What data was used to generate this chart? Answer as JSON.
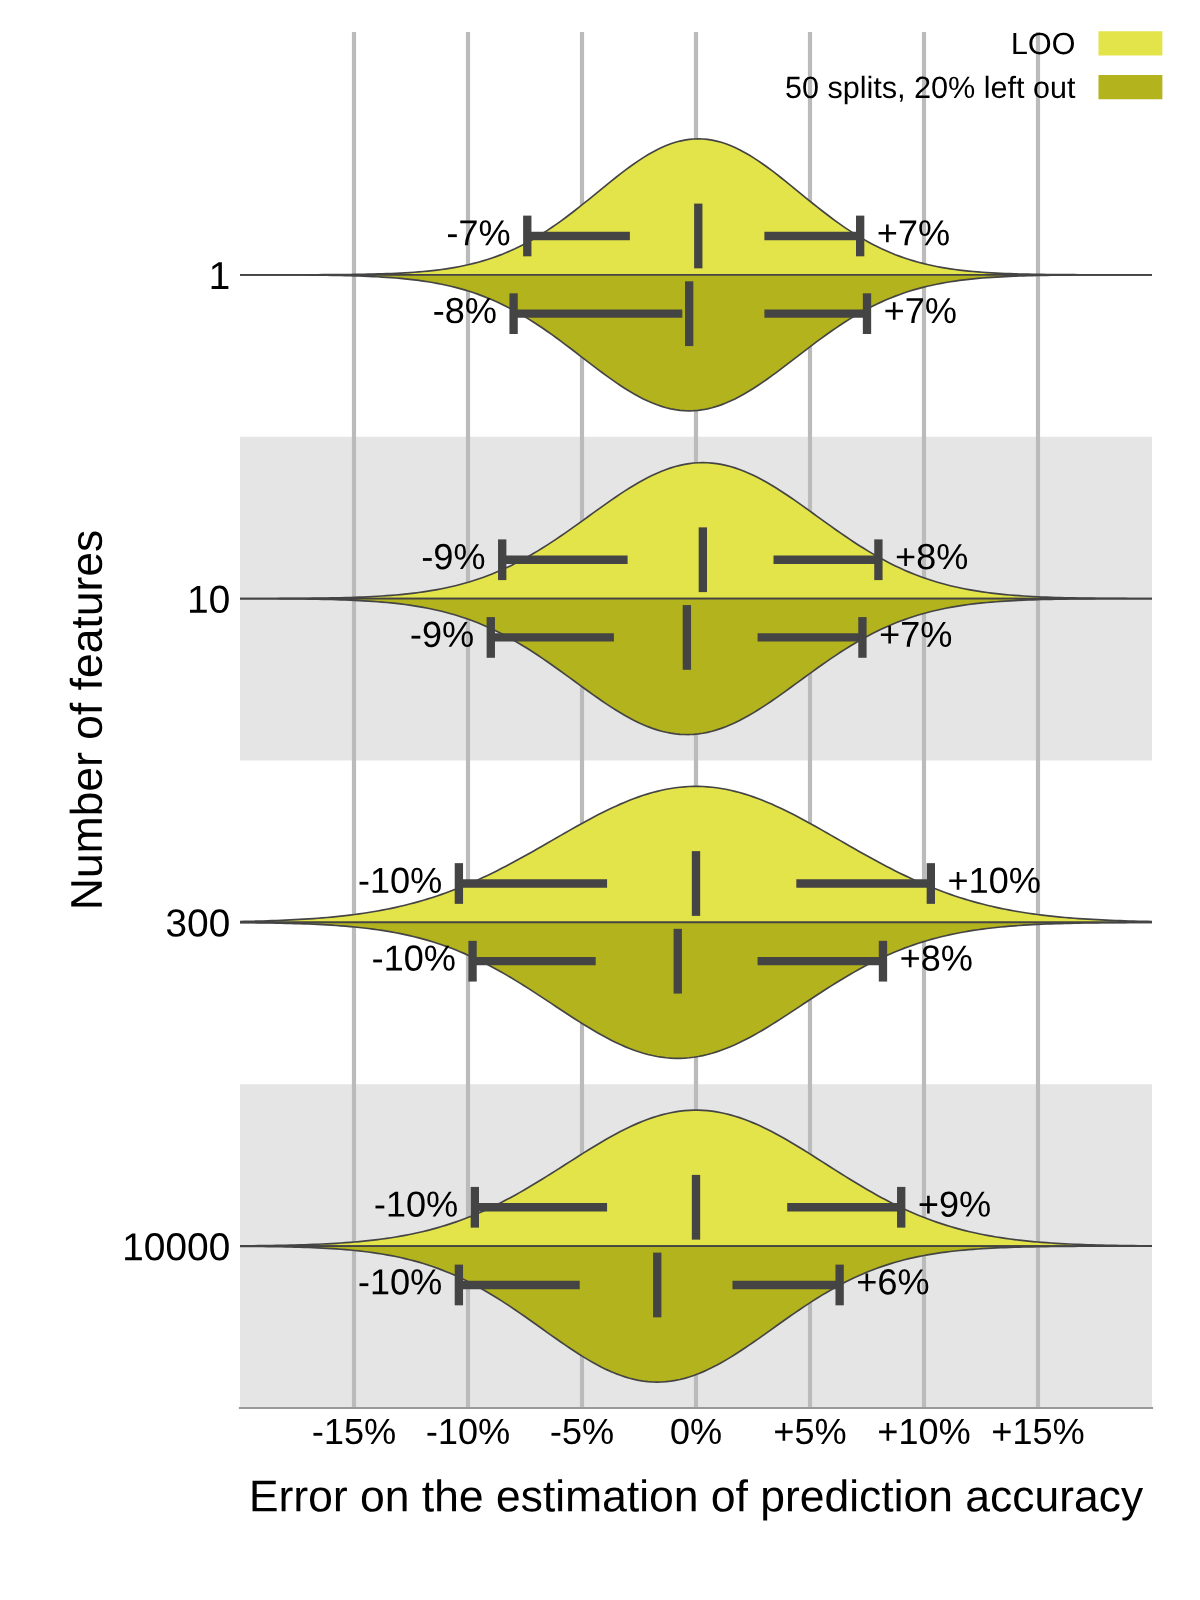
{
  "chart_data": {
    "type": "box",
    "orientation": "horizontal",
    "categories": [
      "1",
      "10",
      "300",
      "10000"
    ],
    "xlabel": "Error on the estimation of prediction accuracy",
    "ylabel": "Number of features",
    "xlim": [
      -20,
      20
    ],
    "xticks": [
      {
        "value": -15,
        "label": "-15%"
      },
      {
        "value": -10,
        "label": "-10%"
      },
      {
        "value": -5,
        "label": "-5%"
      },
      {
        "value": 0,
        "label": "0%"
      },
      {
        "value": 5,
        "label": "+5%"
      },
      {
        "value": 10,
        "label": "+10%"
      },
      {
        "value": 15,
        "label": "+15%"
      }
    ],
    "grid": "x",
    "legend": "right",
    "series": [
      {
        "name": "LOO",
        "color": "#e3e34a",
        "boxes": [
          {
            "low": -7.4,
            "q1": -2.9,
            "median": 0.1,
            "q3": 3.0,
            "high": 7.2
          },
          {
            "low": -8.5,
            "q1": -3.0,
            "median": 0.3,
            "q3": 3.4,
            "high": 8.0
          },
          {
            "low": -10.4,
            "q1": -3.9,
            "median": 0.0,
            "q3": 4.4,
            "high": 10.3
          },
          {
            "low": -9.7,
            "q1": -3.9,
            "median": 0.0,
            "q3": 4.0,
            "high": 9.0
          }
        ]
      },
      {
        "name": "50 splits, 20% left out",
        "color": "#b3b31d",
        "boxes": [
          {
            "low": -8.0,
            "q1": -0.6,
            "median": -0.3,
            "q3": 3.0,
            "high": 7.5
          },
          {
            "low": -9.0,
            "q1": -3.6,
            "median": -0.4,
            "q3": 2.7,
            "high": 7.3
          },
          {
            "low": -9.8,
            "q1": -4.4,
            "median": -0.8,
            "q3": 2.7,
            "high": 8.2
          },
          {
            "low": -10.4,
            "q1": -5.1,
            "median": -1.7,
            "q3": 1.6,
            "high": 6.3
          }
        ]
      }
    ],
    "annotations": [
      "-7%",
      "+7%",
      "-8%",
      "+7%",
      "-9%",
      "+8%",
      "-9%",
      "+7%",
      "-10%",
      "+10%",
      "-10%",
      "+8%",
      "-10%",
      "+9%",
      "-10%",
      "+6%"
    ]
  }
}
